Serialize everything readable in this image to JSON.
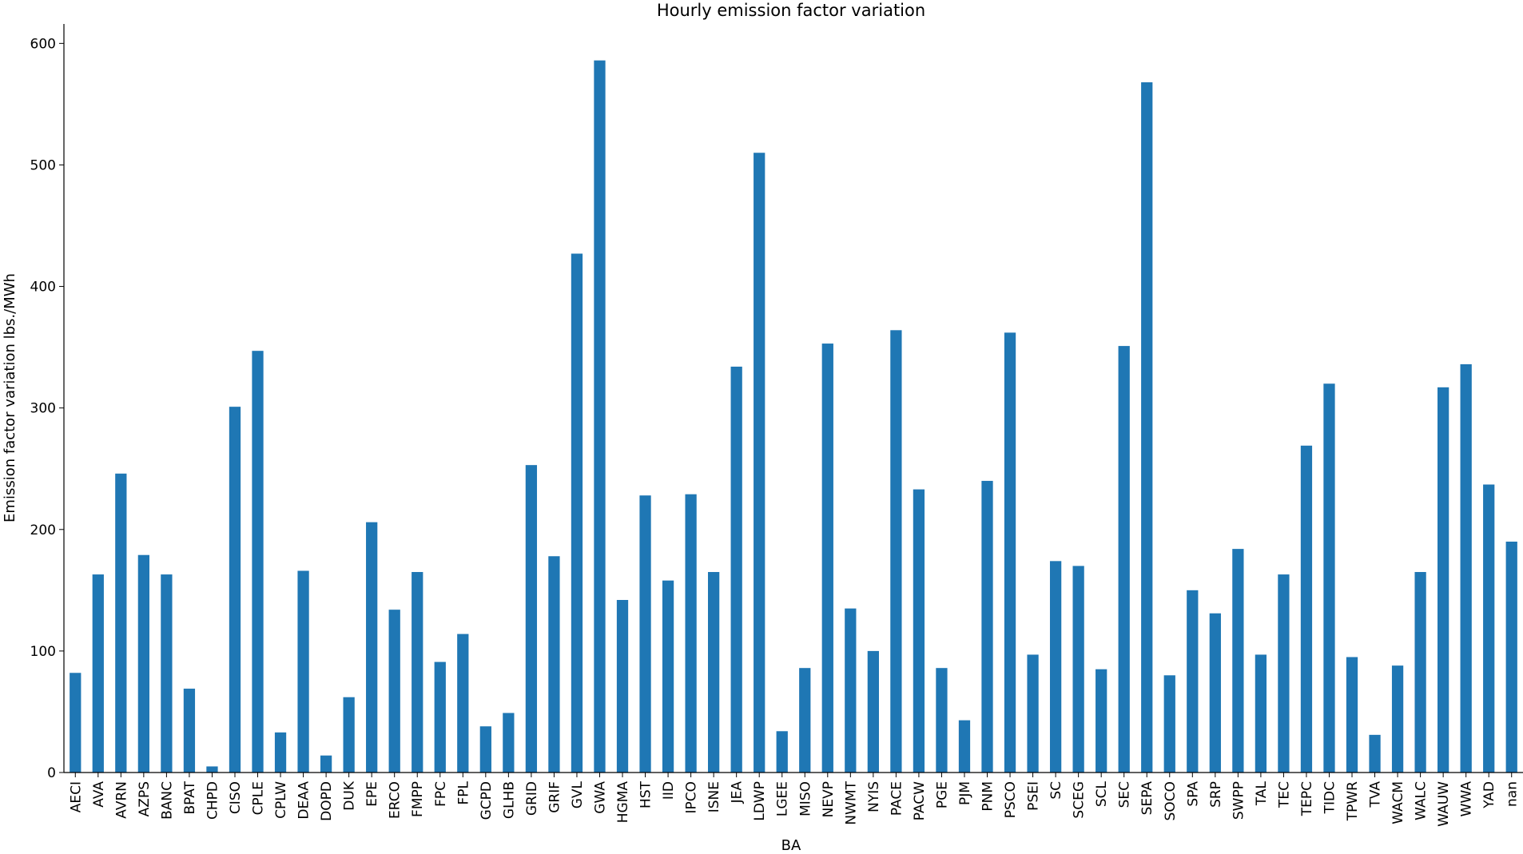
{
  "chart_data": {
    "type": "bar",
    "title": "Hourly emission factor variation",
    "xlabel": "BA",
    "ylabel": "Emission factor variation lbs./MWh",
    "ylim": [
      0,
      616
    ],
    "yticks": [
      0,
      100,
      200,
      300,
      400,
      500,
      600
    ],
    "grid": false,
    "color": "#1f77b4",
    "categories": [
      "AECI",
      "AVA",
      "AVRN",
      "AZPS",
      "BANC",
      "BPAT",
      "CHPD",
      "CISO",
      "CPLE",
      "CPLW",
      "DEAA",
      "DOPD",
      "DUK",
      "EPE",
      "ERCO",
      "FMPP",
      "FPC",
      "FPL",
      "GCPD",
      "GLHB",
      "GRID",
      "GRIF",
      "GVL",
      "GWA",
      "HGMA",
      "HST",
      "IID",
      "IPCO",
      "ISNE",
      "JEA",
      "LDWP",
      "LGEE",
      "MISO",
      "NEVP",
      "NWMT",
      "NYIS",
      "PACE",
      "PACW",
      "PGE",
      "PJM",
      "PNM",
      "PSCO",
      "PSEI",
      "SC",
      "SCEG",
      "SCL",
      "SEC",
      "SEPA",
      "SOCO",
      "SPA",
      "SRP",
      "SWPP",
      "TAL",
      "TEC",
      "TEPC",
      "TIDC",
      "TPWR",
      "TVA",
      "WACM",
      "WALC",
      "WAUW",
      "WWA",
      "YAD",
      "nan"
    ],
    "values": [
      82,
      163,
      246,
      179,
      163,
      69,
      5,
      301,
      347,
      33,
      166,
      14,
      62,
      206,
      134,
      165,
      91,
      114,
      38,
      49,
      253,
      178,
      427,
      586,
      142,
      228,
      158,
      229,
      165,
      334,
      510,
      34,
      86,
      353,
      135,
      100,
      364,
      233,
      86,
      43,
      240,
      362,
      97,
      174,
      170,
      85,
      351,
      568,
      80,
      150,
      131,
      184,
      97,
      163,
      269,
      320,
      95,
      31,
      88,
      165,
      317,
      336,
      237,
      190
    ]
  }
}
